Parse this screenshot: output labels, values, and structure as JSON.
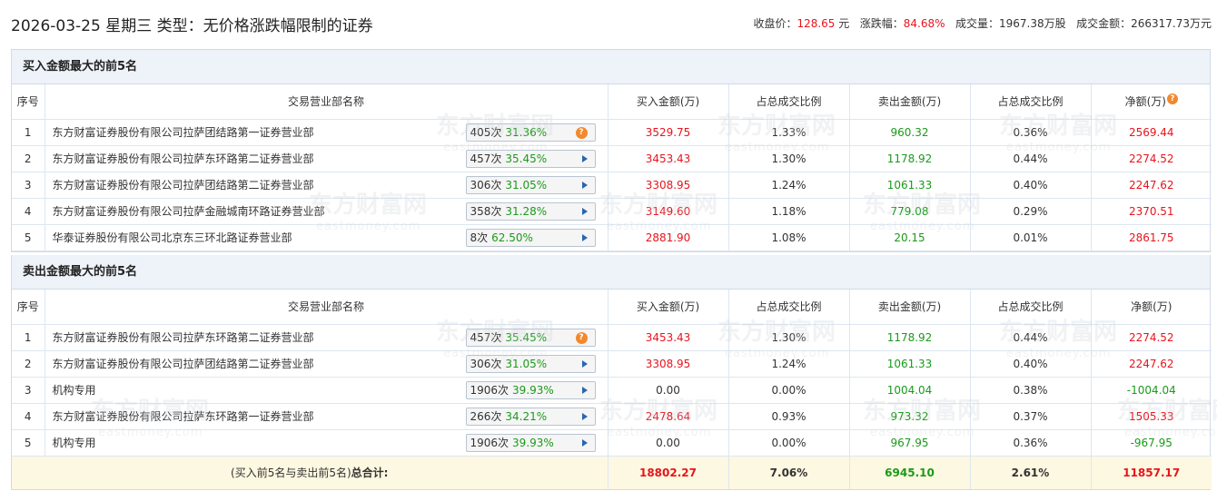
{
  "header": {
    "title": "2026-03-25 星期三 类型：无价格涨跌幅限制的证券",
    "close_label": "收盘价：",
    "close_value": "128.65",
    "close_unit": "元",
    "change_label": "涨跌幅：",
    "change_value": "84.68%",
    "volume_label": "成交量：",
    "volume_value": "1967.38万股",
    "turnover_label": "成交金额：",
    "turnover_value": "266317.73万元"
  },
  "columns": {
    "seq": "序号",
    "name": "交易营业部名称",
    "buy": "买入金额(万)",
    "buy_ratio": "占总成交比例",
    "sell": "卖出金额(万)",
    "sell_ratio": "占总成交比例",
    "net": "净额(万)"
  },
  "buy_section": {
    "title": "买入金额最大的前5名",
    "rows": [
      {
        "seq": "1",
        "name": "东方财富证券股份有限公司拉萨团结路第一证券营业部",
        "count": "405次",
        "pct": "31.36%",
        "icon": "question-icon",
        "buy": "3529.75",
        "buy_ratio": "1.33%",
        "sell": "960.32",
        "sell_ratio": "0.36%",
        "net": "2569.44"
      },
      {
        "seq": "2",
        "name": "东方财富证券股份有限公司拉萨东环路第二证券营业部",
        "count": "457次",
        "pct": "35.45%",
        "icon": "arrow-right-icon",
        "buy": "3453.43",
        "buy_ratio": "1.30%",
        "sell": "1178.92",
        "sell_ratio": "0.44%",
        "net": "2274.52"
      },
      {
        "seq": "3",
        "name": "东方财富证券股份有限公司拉萨团结路第二证券营业部",
        "count": "306次",
        "pct": "31.05%",
        "icon": "arrow-right-icon",
        "buy": "3308.95",
        "buy_ratio": "1.24%",
        "sell": "1061.33",
        "sell_ratio": "0.40%",
        "net": "2247.62"
      },
      {
        "seq": "4",
        "name": "东方财富证券股份有限公司拉萨金融城南环路证券营业部",
        "count": "358次",
        "pct": "31.28%",
        "icon": "arrow-right-icon",
        "buy": "3149.60",
        "buy_ratio": "1.18%",
        "sell": "779.08",
        "sell_ratio": "0.29%",
        "net": "2370.51"
      },
      {
        "seq": "5",
        "name": "华泰证券股份有限公司北京东三环北路证券营业部",
        "count": "8次",
        "pct": "62.50%",
        "icon": "arrow-right-icon",
        "buy": "2881.90",
        "buy_ratio": "1.08%",
        "sell": "20.15",
        "sell_ratio": "0.01%",
        "net": "2861.75"
      }
    ]
  },
  "sell_section": {
    "title": "卖出金额最大的前5名",
    "rows": [
      {
        "seq": "1",
        "name": "东方财富证券股份有限公司拉萨东环路第二证券营业部",
        "count": "457次",
        "pct": "35.45%",
        "icon": "question-icon",
        "buy": "3453.43",
        "buy_ratio": "1.30%",
        "sell": "1178.92",
        "sell_ratio": "0.44%",
        "net": "2274.52"
      },
      {
        "seq": "2",
        "name": "东方财富证券股份有限公司拉萨团结路第二证券营业部",
        "count": "306次",
        "pct": "31.05%",
        "icon": "arrow-right-icon",
        "buy": "3308.95",
        "buy_ratio": "1.24%",
        "sell": "1061.33",
        "sell_ratio": "0.40%",
        "net": "2247.62"
      },
      {
        "seq": "3",
        "name": "机构专用",
        "count": "1906次",
        "pct": "39.93%",
        "icon": "arrow-right-icon",
        "buy": "0.00",
        "buy_ratio": "0.00%",
        "sell": "1004.04",
        "sell_ratio": "0.38%",
        "net": "-1004.04"
      },
      {
        "seq": "4",
        "name": "东方财富证券股份有限公司拉萨东环路第一证券营业部",
        "count": "266次",
        "pct": "34.21%",
        "icon": "arrow-right-icon",
        "buy": "2478.64",
        "buy_ratio": "0.93%",
        "sell": "973.32",
        "sell_ratio": "0.37%",
        "net": "1505.33"
      },
      {
        "seq": "5",
        "name": "机构专用",
        "count": "1906次",
        "pct": "39.93%",
        "icon": "arrow-right-icon",
        "buy": "0.00",
        "buy_ratio": "0.00%",
        "sell": "967.95",
        "sell_ratio": "0.36%",
        "net": "-967.95"
      }
    ]
  },
  "total": {
    "label_prefix": "(买入前5名与卖出前5名)",
    "label_bold": "总合计:",
    "buy": "18802.27",
    "buy_ratio": "7.06%",
    "sell": "6945.10",
    "sell_ratio": "2.61%",
    "net": "11857.17"
  },
  "watermark": {
    "cn": "东方财富网",
    "en": "eastmoney.com"
  },
  "colors": {
    "up": "#e8141c",
    "down": "#1a9a1a",
    "header_bg": "#eef3f9",
    "total_bg": "#fdf8e1"
  }
}
